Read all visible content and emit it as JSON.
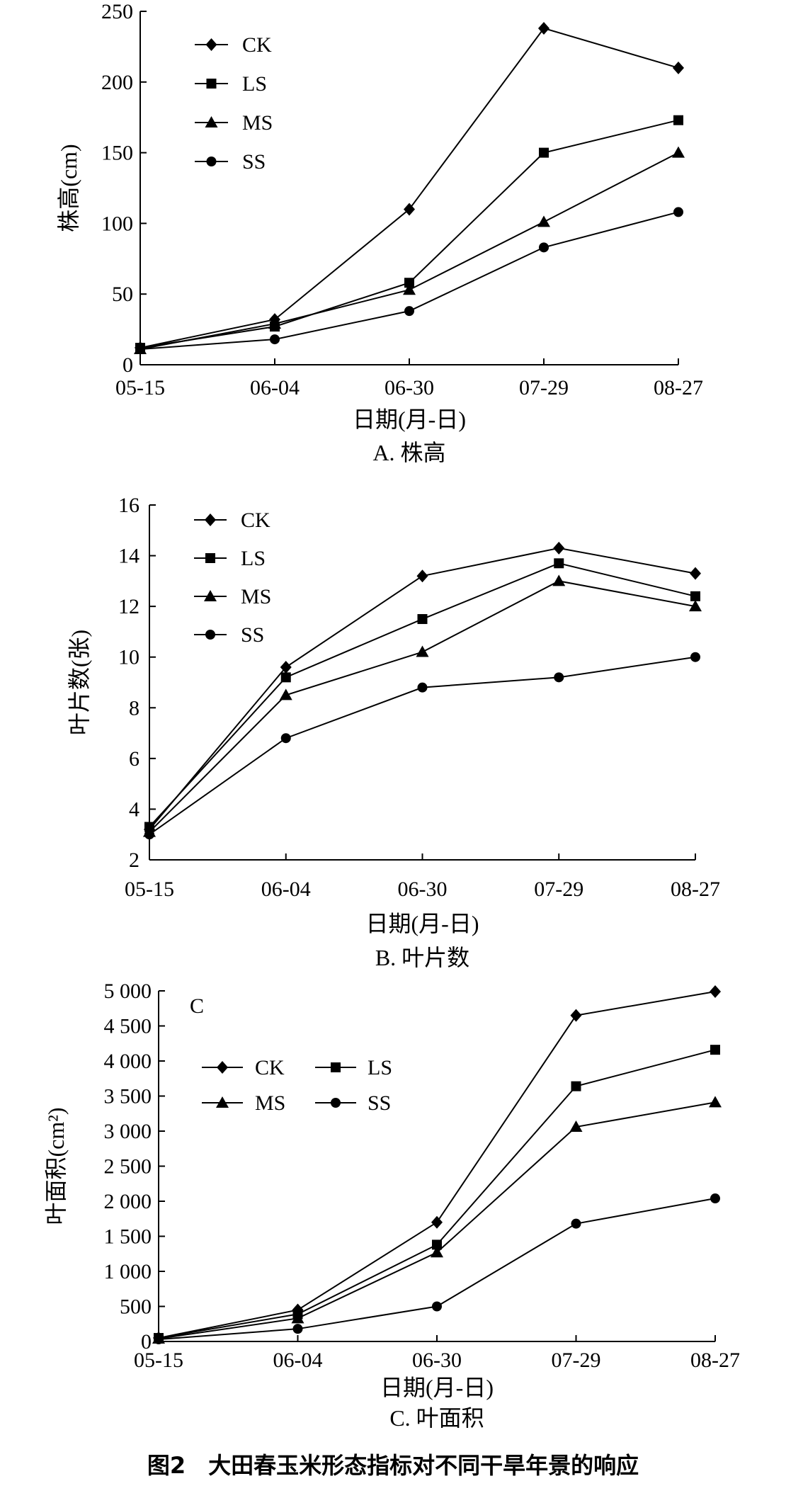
{
  "figure_caption": "图2　大田春玉米形态指标对不同干旱年景的响应",
  "chart_data": [
    {
      "type": "line",
      "title": "A. 株高",
      "xlabel": "日期(月-日)",
      "ylabel": "株高(cm)",
      "categories": [
        "05-15",
        "06-04",
        "06-30",
        "07-29",
        "08-27"
      ],
      "ylim": [
        0,
        250
      ],
      "yticks": [
        0,
        50,
        100,
        150,
        200,
        250
      ],
      "ytick_labels": [
        "0",
        "50",
        "100",
        "150",
        "200",
        "250"
      ],
      "legend_position": "top-left",
      "series": [
        {
          "name": "CK",
          "marker": "diamond",
          "values": [
            12,
            32,
            110,
            238,
            210
          ]
        },
        {
          "name": "LS",
          "marker": "square",
          "values": [
            12,
            27,
            58,
            150,
            173
          ]
        },
        {
          "name": "MS",
          "marker": "triangle",
          "values": [
            11,
            29,
            53,
            101,
            150
          ]
        },
        {
          "name": "SS",
          "marker": "circle",
          "values": [
            11,
            18,
            38,
            83,
            108
          ]
        }
      ]
    },
    {
      "type": "line",
      "title": "B. 叶片数",
      "xlabel": "日期(月-日)",
      "ylabel": "叶片数(张)",
      "categories": [
        "05-15",
        "06-04",
        "06-30",
        "07-29",
        "08-27"
      ],
      "ylim": [
        2,
        16
      ],
      "yticks": [
        2,
        4,
        6,
        8,
        10,
        12,
        14,
        16
      ],
      "ytick_labels": [
        "2",
        "4",
        "6",
        "8",
        "10",
        "12",
        "14",
        "16"
      ],
      "legend_position": "top-left",
      "series": [
        {
          "name": "CK",
          "marker": "diamond",
          "values": [
            3.2,
            9.6,
            13.2,
            14.3,
            13.3
          ]
        },
        {
          "name": "LS",
          "marker": "square",
          "values": [
            3.3,
            9.2,
            11.5,
            13.7,
            12.4
          ]
        },
        {
          "name": "MS",
          "marker": "triangle",
          "values": [
            3.1,
            8.5,
            10.2,
            13.0,
            12.0
          ]
        },
        {
          "name": "SS",
          "marker": "circle",
          "values": [
            3.0,
            6.8,
            8.8,
            9.2,
            10.0
          ]
        }
      ]
    },
    {
      "type": "line",
      "title": "C. 叶面积",
      "panel_label": "C",
      "xlabel": "日期(月-日)",
      "ylabel": "叶面积(cm²)",
      "categories": [
        "05-15",
        "06-04",
        "06-30",
        "07-29",
        "08-27"
      ],
      "ylim": [
        0,
        5000
      ],
      "yticks": [
        0,
        500,
        1000,
        1500,
        2000,
        2500,
        3000,
        3500,
        4000,
        4500,
        5000
      ],
      "ytick_labels": [
        "0",
        "500",
        "1 000",
        "1 500",
        "2 000",
        "2 500",
        "3 000",
        "3 500",
        "4 000",
        "4 500",
        "5 000"
      ],
      "legend_position": "top-left",
      "series": [
        {
          "name": "CK",
          "marker": "diamond",
          "values": [
            50,
            450,
            1700,
            4650,
            4990
          ]
        },
        {
          "name": "LS",
          "marker": "square",
          "values": [
            50,
            390,
            1380,
            3640,
            4160
          ]
        },
        {
          "name": "MS",
          "marker": "triangle",
          "values": [
            40,
            330,
            1270,
            3060,
            3410
          ]
        },
        {
          "name": "SS",
          "marker": "circle",
          "values": [
            30,
            180,
            500,
            1680,
            2040
          ]
        }
      ]
    }
  ]
}
